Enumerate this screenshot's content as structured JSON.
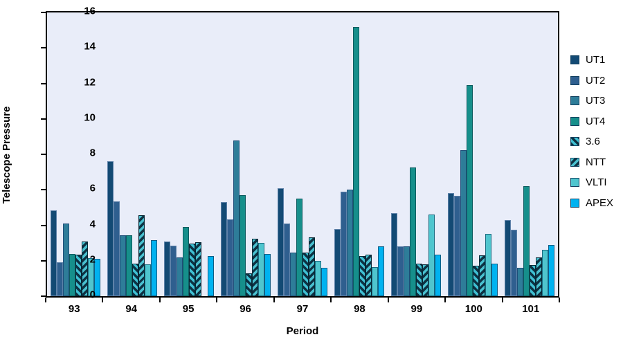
{
  "chart_data": {
    "type": "bar",
    "xlabel": "Period",
    "ylabel": "Telescope Pressure",
    "ylim": [
      0,
      16
    ],
    "ytick_step": 2,
    "grid": false,
    "legend_position": "right",
    "plot_bg": "#E9EDF9",
    "axis_color": "#000000",
    "categories": [
      "93",
      "94",
      "95",
      "96",
      "97",
      "98",
      "99",
      "100",
      "101"
    ],
    "series": [
      {
        "name": "UT1",
        "color": "#134A74",
        "border": "#5F82A9",
        "values": [
          4.85,
          7.6,
          3.1,
          5.3,
          6.1,
          3.8,
          4.7,
          5.8,
          4.3
        ]
      },
      {
        "name": "UT2",
        "color": "#2F5F8F",
        "border": "#5F82A9",
        "values": [
          1.9,
          5.35,
          2.85,
          4.35,
          4.1,
          5.9,
          2.8,
          5.65,
          3.75
        ]
      },
      {
        "name": "UT3",
        "color": "#2E7D99",
        "border": "#1F4E79",
        "values": [
          4.1,
          3.45,
          2.2,
          8.8,
          2.45,
          6.0,
          2.8,
          8.25,
          1.6
        ]
      },
      {
        "name": "UT4",
        "color": "#168F8B",
        "border": "#0D5B60",
        "values": [
          2.4,
          3.45,
          3.9,
          5.7,
          5.5,
          15.2,
          7.25,
          11.9,
          6.2
        ]
      },
      {
        "name": "3.6",
        "pattern": "hatch_dark",
        "border": "#082836",
        "values": [
          2.35,
          1.85,
          2.95,
          1.3,
          2.45,
          2.25,
          1.85,
          1.7,
          1.75
        ]
      },
      {
        "name": "NTT",
        "pattern": "hatch_light",
        "border": "#082836",
        "values": [
          3.1,
          4.55,
          3.05,
          3.25,
          3.3,
          2.35,
          1.8,
          2.3,
          2.2
        ]
      },
      {
        "name": "VLTI",
        "color": "#4FC5CE",
        "border": "#1A6A80",
        "values": [
          2.15,
          1.8,
          0,
          3.0,
          2.0,
          1.65,
          4.6,
          3.5,
          2.6
        ]
      },
      {
        "name": "APEX",
        "color": "#00B2F0",
        "border": "#0E5D85",
        "values": [
          2.1,
          3.15,
          2.25,
          2.4,
          1.6,
          2.8,
          2.35,
          1.85,
          2.9
        ]
      }
    ],
    "hatch_dark": {
      "base": "#0D3243",
      "stripe": "#3FC0D3"
    },
    "hatch_light": {
      "base": "#49C0CF",
      "stripe": "#0D3243"
    }
  }
}
